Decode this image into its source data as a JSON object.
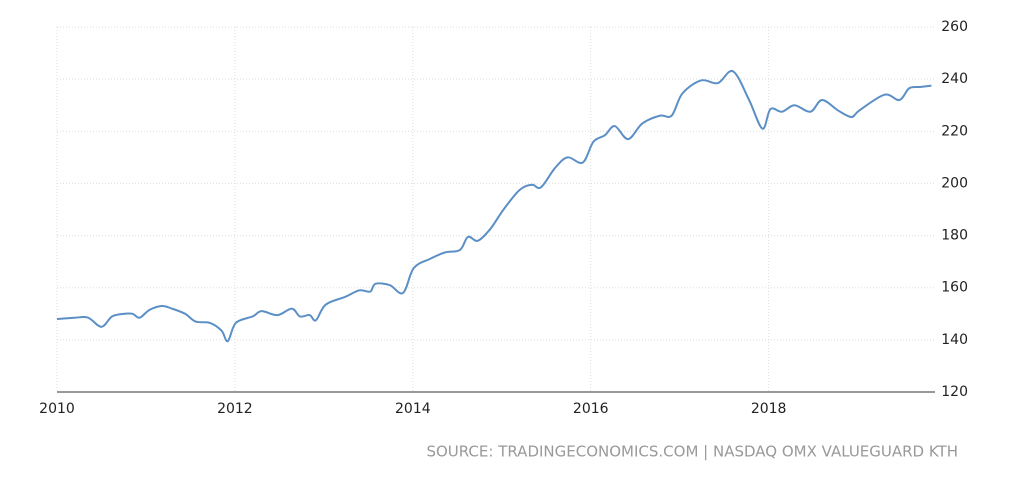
{
  "chart_data": {
    "type": "line",
    "source": "SOURCE: TRADINGECONOMICS.COM | NASDAQ OMX VALUEGUARD KTH",
    "xlim": [
      2010,
      2019.87
    ],
    "ylim": [
      120,
      260
    ],
    "xticks": [
      2010,
      2012,
      2014,
      2016,
      2018
    ],
    "yticks": [
      120,
      140,
      160,
      180,
      200,
      220,
      240,
      260
    ],
    "grid": true,
    "series": [
      {
        "color": "#5b8fc5",
        "x": [
          2010.0,
          2010.2,
          2010.35,
          2010.5,
          2010.62,
          2010.76,
          2010.85,
          2010.93,
          2011.04,
          2011.18,
          2011.29,
          2011.44,
          2011.56,
          2011.72,
          2011.85,
          2011.92,
          2012.01,
          2012.2,
          2012.3,
          2012.48,
          2012.64,
          2012.73,
          2012.84,
          2012.91,
          2013.02,
          2013.24,
          2013.4,
          2013.52,
          2013.58,
          2013.74,
          2013.89,
          2014.01,
          2014.19,
          2014.36,
          2014.53,
          2014.62,
          2014.73,
          2014.87,
          2015.02,
          2015.2,
          2015.34,
          2015.44,
          2015.6,
          2015.74,
          2015.91,
          2016.03,
          2016.16,
          2016.27,
          2016.42,
          2016.58,
          2016.78,
          2016.91,
          2017.03,
          2017.24,
          2017.43,
          2017.6,
          2017.78,
          2017.93,
          2018.02,
          2018.15,
          2018.29,
          2018.47,
          2018.6,
          2018.78,
          2018.93,
          2019.02,
          2019.3,
          2019.47,
          2019.58,
          2019.7,
          2019.83
        ],
        "values": [
          148,
          148.5,
          148.5,
          145,
          149,
          150,
          150,
          148.5,
          151.5,
          153,
          152,
          150,
          147,
          146.5,
          143.5,
          139.5,
          146.5,
          149,
          151,
          149.5,
          152,
          149,
          149.5,
          147.5,
          153.5,
          156.5,
          159,
          158.5,
          161.5,
          161,
          158,
          167.5,
          171,
          173.5,
          174.5,
          179.5,
          178,
          182.5,
          190,
          197.5,
          199.5,
          198.5,
          206,
          210,
          208,
          216,
          218.5,
          222,
          217,
          223,
          226,
          226,
          234.5,
          239.5,
          238.5,
          243,
          232,
          221,
          228.5,
          227.5,
          230,
          227.5,
          232,
          228,
          225.5,
          228,
          234,
          232,
          236.5,
          237,
          237.5
        ]
      }
    ]
  }
}
